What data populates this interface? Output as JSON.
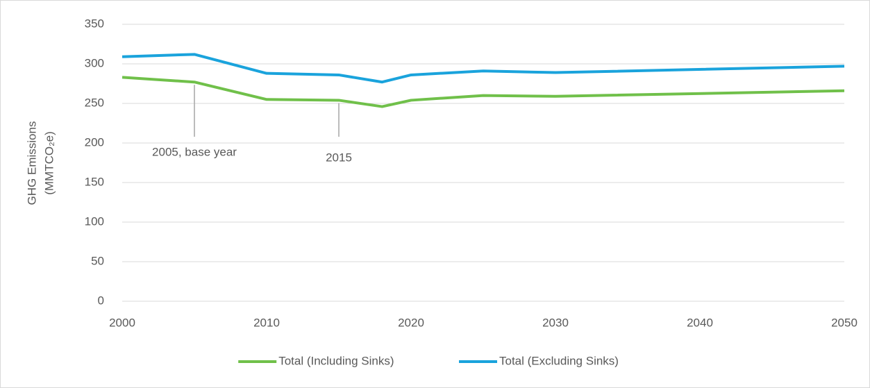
{
  "chart_data": {
    "type": "line",
    "y_label": [
      "GHG Emissions",
      "(MMTCO₂e)"
    ],
    "x": [
      2000,
      2005,
      2010,
      2015,
      2018,
      2020,
      2025,
      2030,
      2050
    ],
    "series": [
      {
        "name": "Total (Including Sinks)",
        "color": "#70c04a",
        "values": [
          283,
          277,
          255,
          254,
          246,
          254,
          260,
          259,
          266
        ]
      },
      {
        "name": "Total (Excluding Sinks)",
        "color": "#1aa3dc",
        "values": [
          309,
          312,
          288,
          286,
          277,
          286,
          291,
          289,
          297
        ]
      }
    ],
    "xlim": [
      2000,
      2050
    ],
    "xticks": [
      2000,
      2010,
      2020,
      2030,
      2040,
      2050
    ],
    "ylim": [
      0,
      350
    ],
    "yticks": [
      0,
      50,
      100,
      150,
      200,
      250,
      300,
      350
    ],
    "grid": true,
    "legend": "bottom",
    "annotations": [
      {
        "text": "2005, base year",
        "x": 2005
      },
      {
        "text": "2015",
        "x": 2015
      }
    ]
  }
}
